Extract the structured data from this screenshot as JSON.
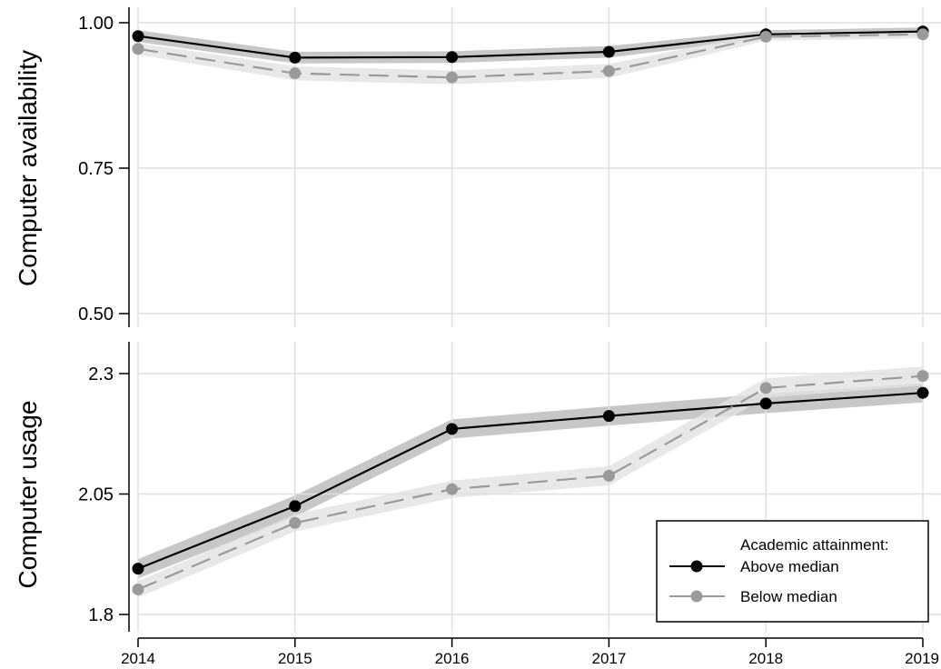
{
  "chart_data": [
    {
      "type": "line",
      "ylabel": "Computer availability",
      "x": [
        2014,
        2015,
        2016,
        2017,
        2018,
        2019
      ],
      "xticks": [
        "2014",
        "2015",
        "2016",
        "2017",
        "2018",
        "2019"
      ],
      "ylim": [
        0.48,
        1.02
      ],
      "yticks": [
        0.5,
        0.75,
        1.0
      ],
      "ytick_labels": [
        "0.50",
        "0.75",
        "1.00"
      ],
      "grid": true,
      "series": [
        {
          "name": "Above median",
          "style": "solid",
          "color": "#000000",
          "values": [
            0.977,
            0.94,
            0.941,
            0.95,
            0.98,
            0.985
          ],
          "ci_low": [
            0.967,
            0.93,
            0.931,
            0.94,
            0.973,
            0.978
          ],
          "ci_high": [
            0.987,
            0.95,
            0.951,
            0.96,
            0.987,
            0.992
          ]
        },
        {
          "name": "Below median",
          "style": "dashed",
          "color": "#999999",
          "values": [
            0.955,
            0.913,
            0.906,
            0.917,
            0.976,
            0.98
          ],
          "ci_low": [
            0.945,
            0.901,
            0.894,
            0.905,
            0.969,
            0.973
          ],
          "ci_high": [
            0.965,
            0.925,
            0.918,
            0.929,
            0.983,
            0.987
          ]
        }
      ]
    },
    {
      "type": "line",
      "ylabel": "Computer usage",
      "x": [
        2014,
        2015,
        2016,
        2017,
        2018,
        2019
      ],
      "xticks": [
        "2014",
        "2015",
        "2016",
        "2017",
        "2018",
        "2019"
      ],
      "ylim": [
        1.77,
        2.33
      ],
      "yticks": [
        1.8,
        2.05,
        2.3
      ],
      "ytick_labels": [
        "1.8",
        "2.05",
        "2.3"
      ],
      "grid": true,
      "series": [
        {
          "name": "Above median",
          "style": "solid",
          "color": "#000000",
          "values": [
            1.895,
            2.025,
            2.185,
            2.212,
            2.238,
            2.26
          ],
          "ci_low": [
            1.875,
            2.003,
            2.165,
            2.192,
            2.218,
            2.24
          ],
          "ci_high": [
            1.915,
            2.047,
            2.205,
            2.232,
            2.258,
            2.28
          ]
        },
        {
          "name": "Below median",
          "style": "dashed",
          "color": "#999999",
          "values": [
            1.852,
            1.99,
            2.06,
            2.088,
            2.27,
            2.295
          ],
          "ci_low": [
            1.835,
            1.972,
            2.042,
            2.068,
            2.25,
            2.275
          ],
          "ci_high": [
            1.869,
            2.008,
            2.078,
            2.108,
            2.29,
            2.315
          ]
        }
      ]
    }
  ],
  "legend": {
    "title": "Academic attainment:",
    "position": "bottom-right",
    "items": [
      "Above median",
      "Below median"
    ]
  },
  "colors": {
    "above_line": "#000000",
    "above_band": "#bdbdbd",
    "below_line": "#9a9a9a",
    "below_band": "#e2e2e2",
    "grid": "#e0e0e0"
  }
}
